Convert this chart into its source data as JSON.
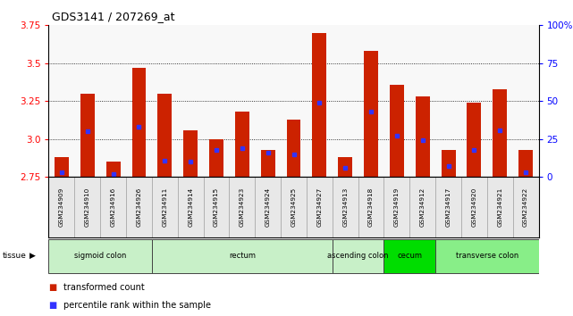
{
  "title": "GDS3141 / 207269_at",
  "samples": [
    "GSM234909",
    "GSM234910",
    "GSM234916",
    "GSM234926",
    "GSM234911",
    "GSM234914",
    "GSM234915",
    "GSM234923",
    "GSM234924",
    "GSM234925",
    "GSM234927",
    "GSM234913",
    "GSM234918",
    "GSM234919",
    "GSM234912",
    "GSM234917",
    "GSM234920",
    "GSM234921",
    "GSM234922"
  ],
  "bar_values": [
    2.88,
    3.3,
    2.85,
    3.47,
    3.3,
    3.06,
    3.0,
    3.18,
    2.93,
    3.13,
    3.7,
    2.88,
    3.58,
    3.36,
    3.28,
    2.93,
    3.24,
    3.33,
    2.93
  ],
  "percentile_values": [
    2.78,
    3.05,
    2.77,
    3.08,
    2.86,
    2.85,
    2.93,
    2.94,
    2.91,
    2.9,
    3.24,
    2.81,
    3.18,
    3.02,
    2.99,
    2.82,
    2.93,
    3.06,
    2.78
  ],
  "tissue_groups": [
    {
      "label": "sigmoid colon",
      "start": 0,
      "end": 4,
      "color": "#c8f0c8"
    },
    {
      "label": "rectum",
      "start": 4,
      "end": 11,
      "color": "#c8f0c8"
    },
    {
      "label": "ascending colon",
      "start": 11,
      "end": 13,
      "color": "#c8f0c8"
    },
    {
      "label": "cecum",
      "start": 13,
      "end": 15,
      "color": "#00dd00"
    },
    {
      "label": "transverse colon",
      "start": 15,
      "end": 19,
      "color": "#88ee88"
    }
  ],
  "ymin": 2.75,
  "ymax": 3.75,
  "y2min": 0,
  "y2max": 100,
  "yticks": [
    2.75,
    3.0,
    3.25,
    3.5,
    3.75
  ],
  "y2ticks": [
    0,
    25,
    50,
    75,
    100
  ],
  "bar_color": "#cc2200",
  "blue_color": "#3333ff",
  "bg_color": "#e8e8e8"
}
